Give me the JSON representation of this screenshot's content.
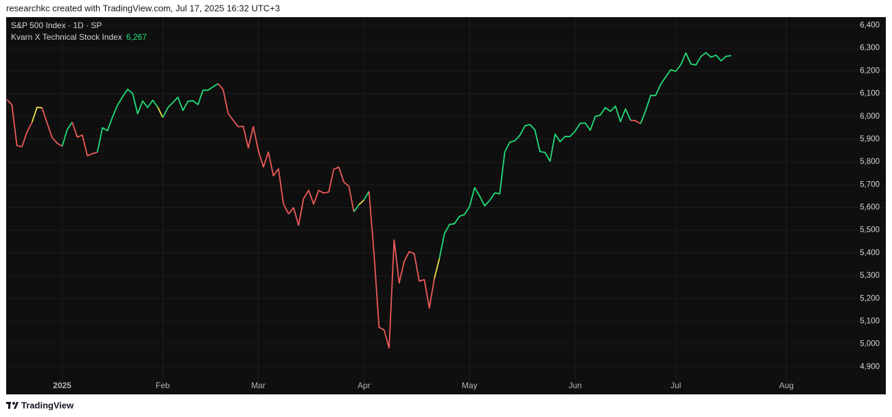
{
  "header": {
    "attribution": "researchkc created with TradingView.com, Jul 17, 2025 16:32 UTC+3"
  },
  "footer": {
    "brand": "TradingView"
  },
  "chart_data": {
    "type": "line",
    "title": "S&P 500 Index · 1D · SP",
    "categories": [
      null,
      null,
      null,
      null,
      null,
      null,
      null,
      null,
      null,
      null,
      null,
      "2025",
      null,
      null,
      null,
      null,
      null,
      null,
      null,
      null,
      null,
      null,
      null,
      null,
      null,
      null,
      null,
      null,
      null,
      null,
      null,
      "Feb",
      null,
      null,
      null,
      null,
      null,
      null,
      null,
      null,
      null,
      null,
      null,
      null,
      null,
      null,
      null,
      null,
      null,
      null,
      "Mar",
      null,
      null,
      null,
      null,
      null,
      null,
      null,
      null,
      null,
      null,
      null,
      null,
      null,
      null,
      null,
      null,
      null,
      null,
      null,
      null,
      "Apr",
      null,
      null,
      null,
      null,
      null,
      null,
      null,
      null,
      null,
      null,
      null,
      null,
      null,
      null,
      null,
      null,
      null,
      null,
      null,
      null,
      "May",
      null,
      null,
      null,
      null,
      null,
      null,
      null,
      null,
      null,
      null,
      null,
      null,
      null,
      null,
      null,
      null,
      null,
      null,
      null,
      null,
      "Jun",
      null,
      null,
      null,
      null,
      null,
      null,
      null,
      null,
      null,
      null,
      null,
      null,
      null,
      null,
      null,
      null,
      null,
      null,
      null,
      "Jul",
      null,
      null,
      null,
      null,
      null,
      null,
      null,
      null,
      null,
      null,
      null,
      null,
      null,
      null,
      null,
      null,
      null,
      null,
      null,
      null,
      null,
      "Aug"
    ],
    "series": [
      {
        "name": "Kvarn X Technical Stock Index",
        "last_value_label": "6,267",
        "label_color": "#22e07a",
        "values": [
          6074,
          6051,
          5872,
          5867,
          5931,
          5974,
          6040,
          6038,
          5971,
          5907,
          5882,
          5869,
          5942,
          5975,
          5909,
          5918,
          5827,
          5836,
          5843,
          5950,
          5937,
          5997,
          6049,
          6086,
          6119,
          6101,
          6012,
          6068,
          6039,
          6071,
          6041,
          5995,
          6038,
          6061,
          6084,
          6026,
          6066,
          6069,
          6052,
          6115,
          6115,
          6130,
          6144,
          6118,
          6013,
          5983,
          5955,
          5956,
          5862,
          5955,
          5850,
          5778,
          5843,
          5739,
          5770,
          5615,
          5572,
          5599,
          5522,
          5639,
          5675,
          5615,
          5675,
          5663,
          5668,
          5768,
          5777,
          5712,
          5693,
          5581,
          5612,
          5633,
          5671,
          5397,
          5074,
          5062,
          4983,
          5457,
          5268,
          5363,
          5406,
          5397,
          5276,
          5283,
          5158,
          5288,
          5376,
          5485,
          5525,
          5529,
          5561,
          5569,
          5604,
          5687,
          5650,
          5607,
          5631,
          5664,
          5660,
          5844,
          5887,
          5893,
          5917,
          5958,
          5964,
          5940,
          5845,
          5842,
          5803,
          5922,
          5889,
          5912,
          5912,
          5936,
          5970,
          5971,
          5939,
          6000,
          6006,
          6039,
          6022,
          6045,
          5977,
          6033,
          5983,
          5981,
          5968,
          6025,
          6092,
          6092,
          6141,
          6173,
          6205,
          6198,
          6227,
          6279,
          6230,
          6226,
          6263,
          6280,
          6260,
          6269,
          6244,
          6264,
          6267,
          null,
          null,
          null,
          null,
          null,
          null,
          null,
          null,
          null,
          null,
          null
        ],
        "point_colors": [
          "#f05a5a",
          "#f05a5a",
          "#f05a5a",
          "#f05a5a",
          "#f05a5a",
          "#f05a5a",
          "#f0e442",
          "#f0e442",
          "#f05a5a",
          "#f05a5a",
          "#f05a5a",
          "#f05a5a",
          "#22e07a",
          "#22e07a",
          "#f05a5a",
          "#f05a5a",
          "#f05a5a",
          "#f05a5a",
          "#f05a5a",
          "#22e07a",
          "#22e07a",
          "#22e07a",
          "#22e07a",
          "#22e07a",
          "#22e07a",
          "#22e07a",
          "#22e07a",
          "#22e07a",
          "#22e07a",
          "#22e07a",
          "#22e07a",
          "#f0e442",
          "#22e07a",
          "#22e07a",
          "#22e07a",
          "#22e07a",
          "#22e07a",
          "#22e07a",
          "#22e07a",
          "#22e07a",
          "#22e07a",
          "#22e07a",
          "#22e07a",
          "#f05a5a",
          "#f05a5a",
          "#f05a5a",
          "#f05a5a",
          "#f05a5a",
          "#f05a5a",
          "#f05a5a",
          "#f05a5a",
          "#f05a5a",
          "#f05a5a",
          "#f05a5a",
          "#f05a5a",
          "#f05a5a",
          "#f05a5a",
          "#f05a5a",
          "#f05a5a",
          "#f05a5a",
          "#f05a5a",
          "#f05a5a",
          "#f05a5a",
          "#f05a5a",
          "#f05a5a",
          "#f05a5a",
          "#f05a5a",
          "#f05a5a",
          "#f05a5a",
          "#f05a5a",
          "#22e07a",
          "#f0e442",
          "#22e07a",
          "#f05a5a",
          "#f05a5a",
          "#f05a5a",
          "#f05a5a",
          "#f05a5a",
          "#f05a5a",
          "#f05a5a",
          "#f05a5a",
          "#f05a5a",
          "#f05a5a",
          "#f05a5a",
          "#f05a5a",
          "#f05a5a",
          "#f0e442",
          "#22e07a",
          "#22e07a",
          "#22e07a",
          "#22e07a",
          "#22e07a",
          "#22e07a",
          "#22e07a",
          "#22e07a",
          "#22e07a",
          "#22e07a",
          "#22e07a",
          "#22e07a",
          "#22e07a",
          "#22e07a",
          "#22e07a",
          "#22e07a",
          "#22e07a",
          "#22e07a",
          "#22e07a",
          "#22e07a",
          "#22e07a",
          "#22e07a",
          "#22e07a",
          "#22e07a",
          "#22e07a",
          "#22e07a",
          "#22e07a",
          "#22e07a",
          "#22e07a",
          "#22e07a",
          "#22e07a",
          "#22e07a",
          "#22e07a",
          "#22e07a",
          "#22e07a",
          "#22e07a",
          "#22e07a",
          "#22e07a",
          "#f05a5a",
          "#f05a5a",
          "#22e07a",
          "#22e07a",
          "#22e07a",
          "#22e07a",
          "#22e07a",
          "#22e07a",
          "#22e07a",
          "#22e07a",
          "#22e07a",
          "#22e07a",
          "#22e07a",
          "#22e07a",
          "#22e07a",
          "#22e07a",
          "#22e07a",
          "#22e07a",
          "#22e07a",
          "#22e07a",
          null,
          null,
          null,
          null,
          null,
          null,
          null,
          null,
          null,
          null,
          null
        ]
      }
    ],
    "ylim": [
      4779,
      6436
    ],
    "yticks": [
      {
        "value": 6400,
        "label": "6,400"
      },
      {
        "value": 6300,
        "label": "6,300"
      },
      {
        "value": 6200,
        "label": "6,200"
      },
      {
        "value": 6100,
        "label": "6,100"
      },
      {
        "value": 6000,
        "label": "6,000"
      },
      {
        "value": 5900,
        "label": "5,900"
      },
      {
        "value": 5800,
        "label": "5,800"
      },
      {
        "value": 5700,
        "label": "5,700"
      },
      {
        "value": 5600,
        "label": "5,600"
      },
      {
        "value": 5500,
        "label": "5,500"
      },
      {
        "value": 5400,
        "label": "5,400"
      },
      {
        "value": 5300,
        "label": "5,300"
      },
      {
        "value": 5200,
        "label": "5,200"
      },
      {
        "value": 5100,
        "label": "5,100"
      },
      {
        "value": 5000,
        "label": "5,000"
      },
      {
        "value": 4900,
        "label": "4,900"
      }
    ],
    "grid": true,
    "background": "#0f0f0f"
  }
}
